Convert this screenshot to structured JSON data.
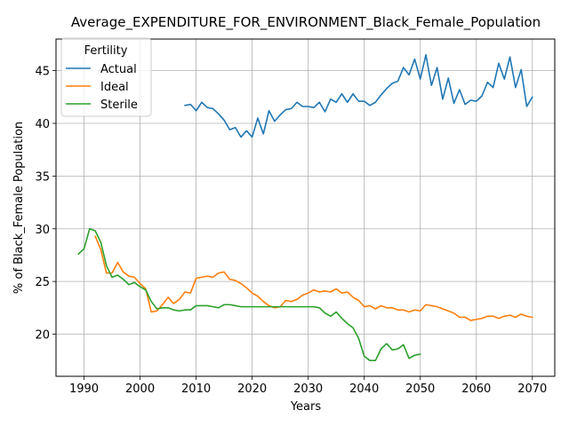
{
  "chart_data": {
    "type": "line",
    "title": "Average_EXPENDITURE_FOR_ENVIRONMENT_Black_Female_Population",
    "xlabel": "Years",
    "ylabel": "% of Black_Female Population",
    "xlim": [
      1985,
      2074
    ],
    "ylim": [
      16,
      48
    ],
    "xticks": [
      1990,
      2000,
      2010,
      2020,
      2030,
      2040,
      2050,
      2060,
      2070
    ],
    "yticks": [
      20,
      25,
      30,
      35,
      40,
      45
    ],
    "grid": true,
    "legend": {
      "title": "Fertility",
      "placement": "top-left"
    },
    "series": [
      {
        "name": "Actual",
        "color": "#1f77b4",
        "x": [
          2008,
          2009,
          2010,
          2011,
          2012,
          2013,
          2014,
          2015,
          2016,
          2017,
          2018,
          2019,
          2020,
          2021,
          2022,
          2023,
          2024,
          2025,
          2026,
          2027,
          2028,
          2029,
          2030,
          2031,
          2032,
          2033,
          2034,
          2035,
          2036,
          2037,
          2038,
          2039,
          2040,
          2041,
          2042,
          2043,
          2044,
          2045,
          2046,
          2047,
          2048,
          2049,
          2050,
          2051,
          2052,
          2053,
          2054,
          2055,
          2056,
          2057,
          2058,
          2059,
          2060,
          2061,
          2062,
          2063,
          2064,
          2065,
          2066,
          2067,
          2068,
          2069,
          2070
        ],
        "y": [
          41.7,
          41.8,
          41.2,
          42.0,
          41.5,
          41.4,
          40.9,
          40.3,
          39.4,
          39.6,
          38.7,
          39.3,
          38.7,
          40.5,
          39.0,
          41.2,
          40.2,
          40.8,
          41.3,
          41.4,
          42.0,
          41.6,
          41.6,
          41.5,
          42.0,
          41.1,
          42.3,
          42.0,
          42.8,
          42.0,
          42.8,
          42.1,
          42.1,
          41.7,
          42.0,
          42.7,
          43.3,
          43.8,
          44.0,
          45.3,
          44.6,
          46.1,
          44.2,
          46.5,
          43.6,
          45.3,
          42.3,
          44.3,
          41.9,
          43.2,
          41.8,
          42.2,
          42.1,
          42.6,
          43.9,
          43.4,
          45.7,
          44.2,
          46.3,
          43.4,
          45.1,
          41.6,
          42.5
        ]
      },
      {
        "name": "Ideal",
        "color": "#ff7f0e",
        "x": [
          1992,
          1993,
          1994,
          1995,
          1996,
          1997,
          1998,
          1999,
          2000,
          2001,
          2002,
          2003,
          2004,
          2005,
          2006,
          2007,
          2008,
          2009,
          2010,
          2011,
          2012,
          2013,
          2014,
          2015,
          2016,
          2017,
          2018,
          2019,
          2020,
          2021,
          2022,
          2023,
          2024,
          2025,
          2026,
          2027,
          2028,
          2029,
          2030,
          2031,
          2032,
          2033,
          2034,
          2035,
          2036,
          2037,
          2038,
          2039,
          2040,
          2041,
          2042,
          2043,
          2044,
          2045,
          2046,
          2047,
          2048,
          2049,
          2050,
          2051,
          2052,
          2053,
          2054,
          2055,
          2056,
          2057,
          2058,
          2059,
          2060,
          2061,
          2062,
          2063,
          2064,
          2065,
          2066,
          2067,
          2068,
          2069,
          2070
        ],
        "y": [
          29.3,
          28.0,
          25.8,
          25.8,
          26.8,
          25.9,
          25.5,
          25.4,
          24.8,
          24.3,
          22.1,
          22.2,
          22.8,
          23.5,
          22.9,
          23.3,
          24.0,
          23.9,
          25.3,
          25.4,
          25.5,
          25.4,
          25.8,
          25.9,
          25.2,
          25.1,
          24.8,
          24.4,
          23.9,
          23.6,
          23.1,
          22.7,
          22.5,
          22.6,
          23.2,
          23.1,
          23.3,
          23.7,
          23.9,
          24.2,
          24.0,
          24.1,
          24.0,
          24.3,
          23.9,
          24.0,
          23.5,
          23.2,
          22.6,
          22.7,
          22.4,
          22.7,
          22.5,
          22.5,
          22.3,
          22.3,
          22.1,
          22.3,
          22.2,
          22.8,
          22.7,
          22.6,
          22.4,
          22.2,
          22.0,
          21.6,
          21.6,
          21.3,
          21.4,
          21.5,
          21.7,
          21.7,
          21.5,
          21.7,
          21.8,
          21.6,
          21.9,
          21.7,
          21.6
        ]
      },
      {
        "name": "Sterile",
        "color": "#2ca02c",
        "x": [
          1989,
          1990,
          1991,
          1992,
          1993,
          1994,
          1995,
          1996,
          1997,
          1998,
          1999,
          2000,
          2001,
          2002,
          2003,
          2004,
          2005,
          2006,
          2007,
          2008,
          2009,
          2010,
          2011,
          2012,
          2013,
          2014,
          2015,
          2016,
          2017,
          2018,
          2019,
          2020,
          2021,
          2022,
          2023,
          2024,
          2025,
          2026,
          2027,
          2028,
          2029,
          2030,
          2031,
          2032,
          2033,
          2034,
          2035,
          2036,
          2037,
          2038,
          2039,
          2040,
          2041,
          2042,
          2043,
          2044,
          2045,
          2046,
          2047,
          2048,
          2049,
          2050
        ],
        "y": [
          27.6,
          28.1,
          30.0,
          29.8,
          28.7,
          26.5,
          25.4,
          25.6,
          25.2,
          24.7,
          24.9,
          24.5,
          24.2,
          23.1,
          22.4,
          22.5,
          22.5,
          22.3,
          22.2,
          22.3,
          22.3,
          22.7,
          22.7,
          22.7,
          22.6,
          22.5,
          22.8,
          22.8,
          22.7,
          22.6,
          22.6,
          22.6,
          22.6,
          22.6,
          22.6,
          22.6,
          22.6,
          22.6,
          22.6,
          22.6,
          22.6,
          22.6,
          22.6,
          22.5,
          22.0,
          21.7,
          22.1,
          21.5,
          21.0,
          20.6,
          19.6,
          17.9,
          17.5,
          17.5,
          18.6,
          19.1,
          18.5,
          18.6,
          19.0,
          17.7,
          18.0,
          18.1
        ]
      }
    ]
  }
}
